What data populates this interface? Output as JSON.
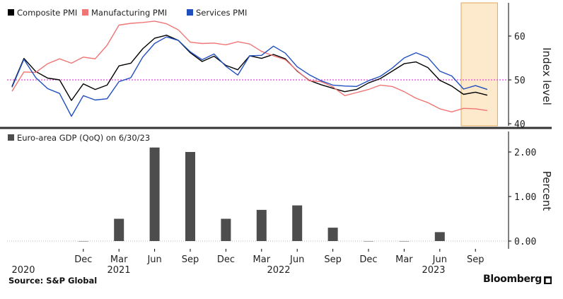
{
  "chart_data": [
    {
      "type": "line",
      "title": "",
      "ylabel": "Index level",
      "ylim": [
        38.5,
        67.5
      ],
      "yticks": [
        40,
        50,
        60
      ],
      "reference_line": 50,
      "highlight_range": [
        "Aug 2023",
        "Oct 2023"
      ],
      "x_months": [
        "Jun 2020",
        "Jul 2020",
        "Aug 2020",
        "Sep 2020",
        "Oct 2020",
        "Nov 2020",
        "Dec 2020",
        "Jan 2021",
        "Feb 2021",
        "Mar 2021",
        "Apr 2021",
        "May 2021",
        "Jun 2021",
        "Jul 2021",
        "Aug 2021",
        "Sep 2021",
        "Oct 2021",
        "Nov 2021",
        "Dec 2021",
        "Jan 2022",
        "Feb 2022",
        "Mar 2022",
        "Apr 2022",
        "May 2022",
        "Jun 2022",
        "Jul 2022",
        "Aug 2022",
        "Sep 2022",
        "Oct 2022",
        "Nov 2022",
        "Dec 2022",
        "Jan 2023",
        "Feb 2023",
        "Mar 2023",
        "Apr 2023",
        "May 2023",
        "Jun 2023",
        "Jul 2023",
        "Aug 2023",
        "Sep 2023",
        "Oct 2023"
      ],
      "series": [
        {
          "name": "Composite PMI",
          "color": "#000000",
          "values": [
            48.5,
            54.9,
            51.9,
            50.4,
            50.0,
            45.3,
            49.1,
            47.8,
            48.8,
            53.2,
            53.8,
            57.1,
            59.5,
            60.2,
            59.0,
            56.2,
            54.2,
            55.4,
            53.3,
            52.3,
            55.5,
            54.9,
            55.8,
            54.8,
            52.0,
            49.9,
            48.9,
            48.1,
            47.3,
            47.8,
            49.3,
            50.3,
            52.0,
            53.7,
            54.1,
            52.8,
            49.9,
            48.6,
            46.7,
            47.2,
            46.5
          ]
        },
        {
          "name": "Manufacturing PMI",
          "color": "#f07575",
          "values": [
            47.4,
            51.8,
            51.7,
            53.7,
            54.8,
            53.8,
            55.2,
            54.8,
            57.9,
            62.5,
            62.9,
            63.1,
            63.4,
            62.8,
            61.4,
            58.6,
            58.3,
            58.4,
            58.0,
            58.7,
            58.2,
            56.5,
            55.5,
            54.6,
            52.1,
            49.8,
            49.6,
            48.4,
            46.4,
            47.1,
            47.8,
            48.8,
            48.5,
            47.3,
            45.8,
            44.8,
            43.4,
            42.7,
            43.5,
            43.4,
            43.0
          ]
        },
        {
          "name": "Services PMI",
          "color": "#1f4fbf",
          "values": [
            48.3,
            54.7,
            50.5,
            48.0,
            46.9,
            41.7,
            46.4,
            45.4,
            45.7,
            49.6,
            50.5,
            55.2,
            58.3,
            59.8,
            59.0,
            56.4,
            54.6,
            55.9,
            53.1,
            51.1,
            55.5,
            55.6,
            57.7,
            56.1,
            53.0,
            51.2,
            49.8,
            48.8,
            48.6,
            48.5,
            49.8,
            50.8,
            52.7,
            55.0,
            56.2,
            55.1,
            52.0,
            50.9,
            47.9,
            48.7,
            47.8
          ]
        }
      ],
      "legend": [
        "Composite PMI",
        "Manufacturing PMI",
        "Services PMI"
      ]
    },
    {
      "type": "bar",
      "title": "Euro-area GDP (QoQ) on 6/30/23",
      "ylabel": "Percent",
      "ylim": [
        -0.1,
        2.3
      ],
      "yticks": [
        "0.00",
        "1.00",
        "2.00"
      ],
      "categories": [
        "Dec 2020",
        "Mar 2021",
        "Jun 2021",
        "Sep 2021",
        "Dec 2021",
        "Mar 2022",
        "Jun 2022",
        "Sep 2022",
        "Dec 2022",
        "Mar 2023",
        "Jun 2023"
      ],
      "values": [
        -0.1,
        0.5,
        2.1,
        2.0,
        0.5,
        0.7,
        0.8,
        0.3,
        -0.1,
        -0.1,
        0.2
      ],
      "color": "#4d4d4d"
    }
  ],
  "x_axis": {
    "ticks": [
      "Dec",
      "Mar",
      "Jun",
      "Sep",
      "Dec",
      "Mar",
      "Jun",
      "Sep",
      "Dec",
      "Mar",
      "Jun",
      "Sep"
    ],
    "years": [
      "2020",
      "2021",
      "2022",
      "2023"
    ]
  },
  "footer": {
    "source": "Source: S&P Global",
    "brand": "Bloomberg"
  }
}
